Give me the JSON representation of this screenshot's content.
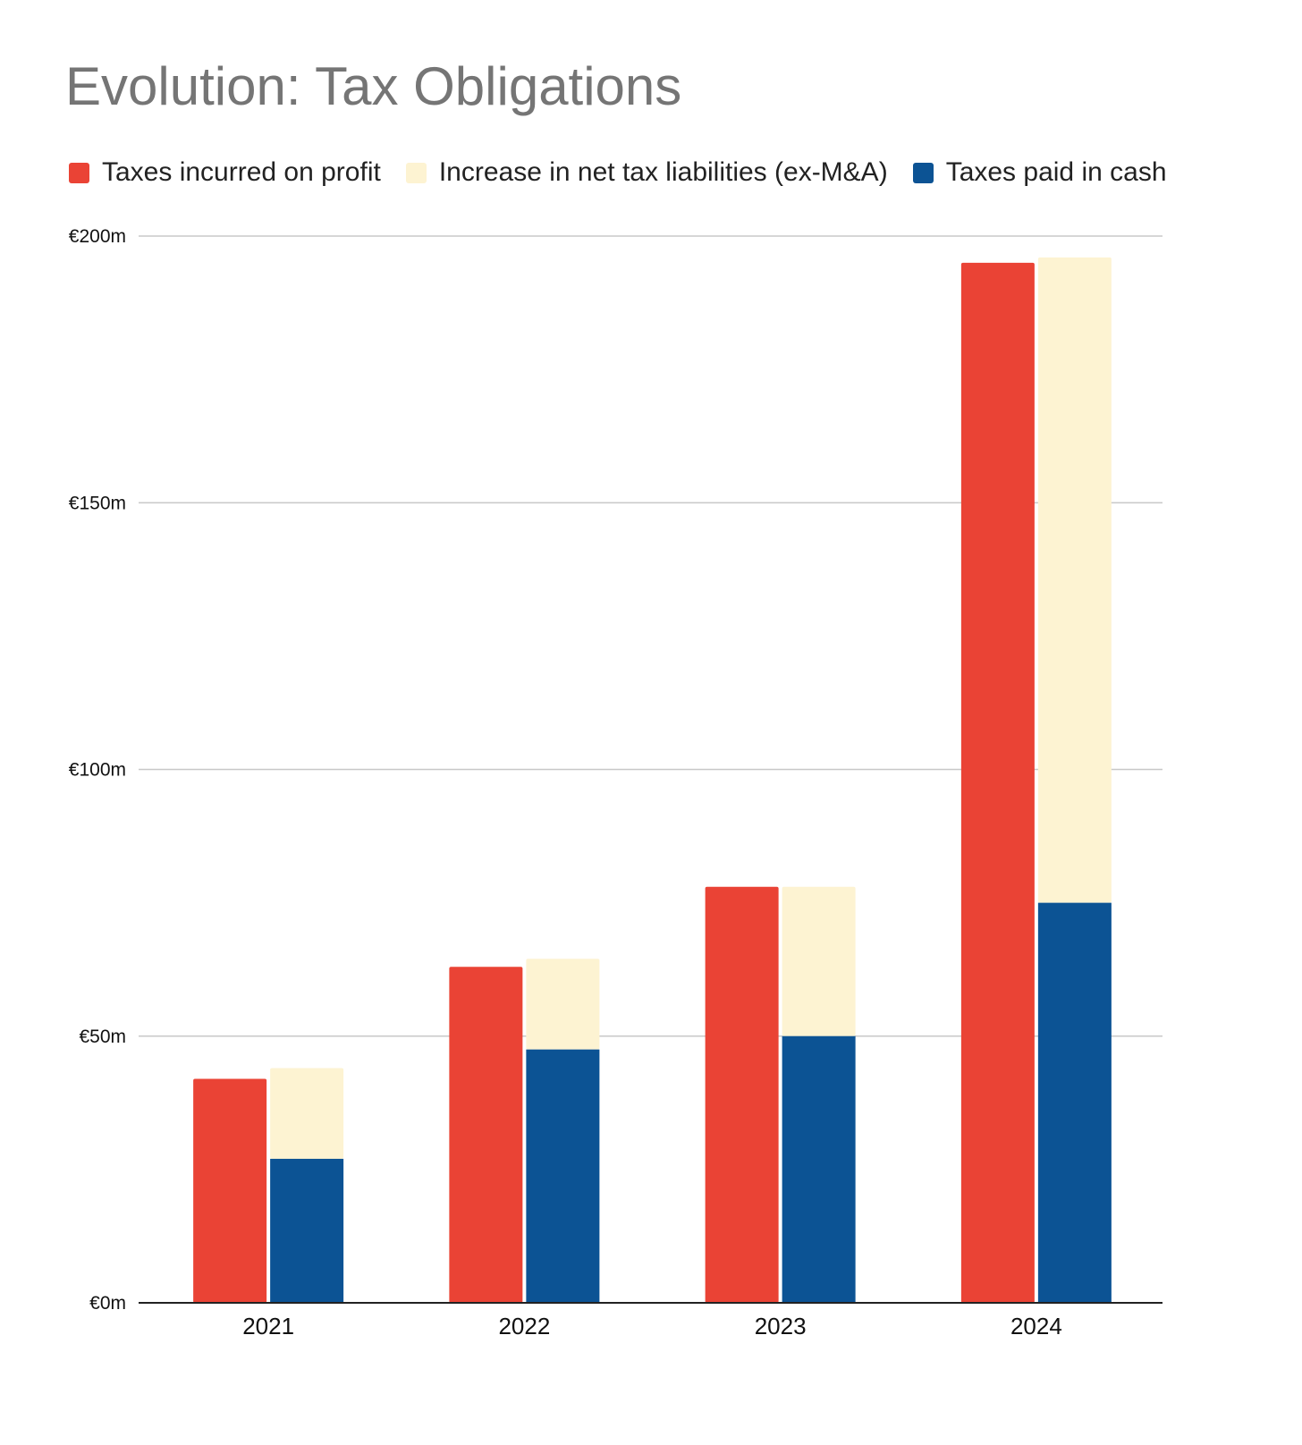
{
  "chart_data": {
    "type": "bar",
    "title": "Evolution: Tax Obligations",
    "categories": [
      "2021",
      "2022",
      "2023",
      "2024"
    ],
    "series": [
      {
        "name": "Taxes incurred on profit",
        "values": [
          42,
          63,
          78,
          195
        ],
        "color": "#EA4335",
        "bar": "left"
      },
      {
        "name": "Increase in net tax liabilities (ex-M&A)",
        "values": [
          17,
          17,
          28,
          121
        ],
        "color": "#FDF3D2",
        "bar": "right",
        "stack": "on-top"
      },
      {
        "name": "Taxes paid in cash",
        "values": [
          27,
          47.5,
          50,
          75
        ],
        "color": "#0C5394",
        "bar": "right",
        "stack": "base"
      }
    ],
    "ylim": [
      0,
      200
    ],
    "y_ticks": [
      0,
      50,
      100,
      150,
      200
    ],
    "y_tick_labels": [
      "€0m",
      "€50m",
      "€100m",
      "€150m",
      "€200m"
    ],
    "grid": true,
    "legend_position": "top-left",
    "xlabel": "",
    "ylabel": ""
  }
}
